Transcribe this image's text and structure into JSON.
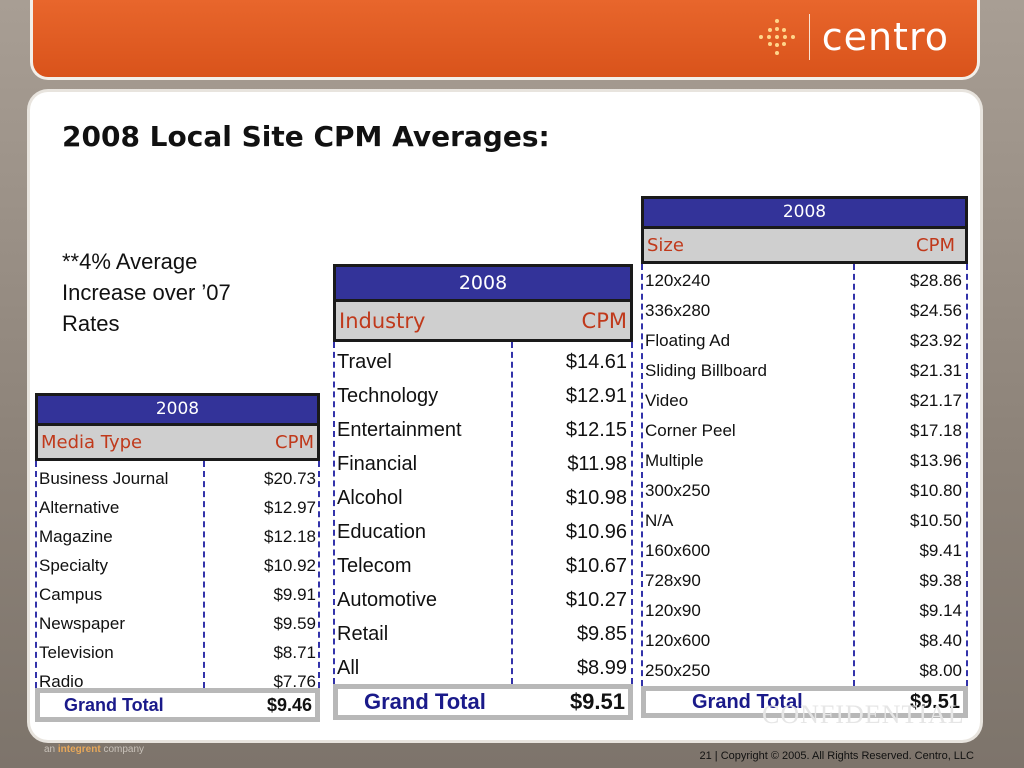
{
  "header": {
    "logo_text": "centro",
    "brand_color": "#e05a22"
  },
  "slide": {
    "title": "2008 Local Site CPM Averages:",
    "note": "**4% Average Increase over ’07 Rates"
  },
  "media_table": {
    "year": "2008",
    "col1": "Media Type",
    "col2": "CPM",
    "rows": [
      {
        "label": "Business Journal",
        "value": "$20.73"
      },
      {
        "label": "Alternative",
        "value": "$12.97"
      },
      {
        "label": "Magazine",
        "value": "$12.18"
      },
      {
        "label": "Specialty",
        "value": "$10.92"
      },
      {
        "label": "Campus",
        "value": "$9.91"
      },
      {
        "label": "Newspaper",
        "value": "$9.59"
      },
      {
        "label": "Television",
        "value": "$8.71"
      },
      {
        "label": "Radio",
        "value": "$7.76"
      }
    ],
    "total_label": "Grand Total",
    "total_value": "$9.46"
  },
  "industry_table": {
    "year": "2008",
    "col1": "Industry",
    "col2": "CPM",
    "rows": [
      {
        "label": "Travel",
        "value": "$14.61"
      },
      {
        "label": "Technology",
        "value": "$12.91"
      },
      {
        "label": "Entertainment",
        "value": "$12.15"
      },
      {
        "label": "Financial",
        "value": "$11.98"
      },
      {
        "label": "Alcohol",
        "value": "$10.98"
      },
      {
        "label": "Education",
        "value": "$10.96"
      },
      {
        "label": "Telecom",
        "value": "$10.67"
      },
      {
        "label": "Automotive",
        "value": "$10.27"
      },
      {
        "label": "Retail",
        "value": "$9.85"
      },
      {
        "label": "All",
        "value": "$8.99"
      }
    ],
    "total_label": "Grand Total",
    "total_value": "$9.51"
  },
  "size_table": {
    "year": "2008",
    "col1": "Size",
    "col2": "CPM",
    "rows": [
      {
        "label": "120x240",
        "value": "$28.86"
      },
      {
        "label": "336x280",
        "value": "$24.56"
      },
      {
        "label": "Floating Ad",
        "value": "$23.92"
      },
      {
        "label": "Sliding Billboard",
        "value": "$21.31"
      },
      {
        "label": "Video",
        "value": "$21.17"
      },
      {
        "label": "Corner Peel",
        "value": "$17.18"
      },
      {
        "label": "Multiple",
        "value": "$13.96"
      },
      {
        "label": "300x250",
        "value": "$10.80"
      },
      {
        "label": "N/A",
        "value": "$10.50"
      },
      {
        "label": "160x600",
        "value": "$9.41"
      },
      {
        "label": "728x90",
        "value": "$9.38"
      },
      {
        "label": "120x90",
        "value": "$9.14"
      },
      {
        "label": "120x600",
        "value": "$8.40"
      },
      {
        "label": "250x250",
        "value": "$8.00"
      }
    ],
    "total_label": "Grand Total",
    "total_value": "$9.51"
  },
  "watermark": "CONFIDENTIAL",
  "footer": {
    "left_prefix": "an",
    "left_brand": "integrent",
    "left_suffix": "company",
    "right": "21  |  Copyright © 2005.  All Rights Reserved. Centro, LLC"
  }
}
